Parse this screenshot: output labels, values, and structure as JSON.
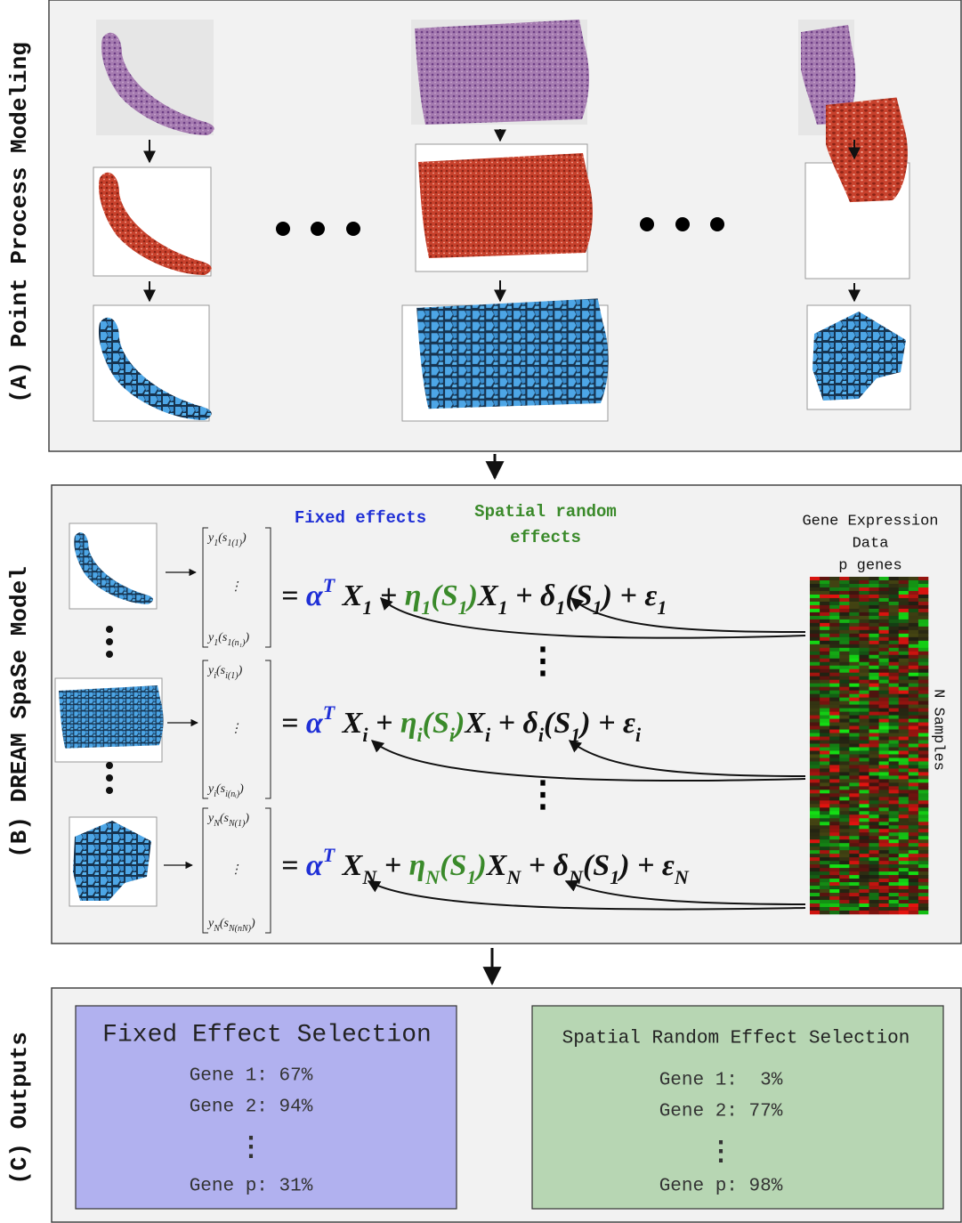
{
  "panel_a": {
    "label": "(A) Point Process Modeling"
  },
  "panel_b": {
    "label": "(B) DREAM SpaSe Model",
    "fixed_effects": "Fixed effects",
    "spatial_random_effects": [
      "Spatial random",
      "effects"
    ],
    "gene_expression": [
      "Gene Expression",
      "Data",
      "p genes"
    ],
    "n_samples": "N Samples",
    "vdots": "⋮",
    "fixed_color": "#1f2fd6",
    "spatial_color": "#3a8a2a",
    "equations": [
      {
        "vector": [
          [
            {
              "text": "y",
              "sub": "1"
            },
            {
              "text": "(s",
              "sub": "1(1)"
            },
            {
              "text": ")"
            }
          ],
          [
            {
              "text": "⋮"
            }
          ],
          [
            {
              "text": "y",
              "sub": "1"
            },
            {
              "text": "(s",
              "sub": "1(n₁)"
            },
            {
              "text": ")"
            }
          ]
        ],
        "terms": [
          {
            "text": "= "
          },
          {
            "text": "α",
            "sup": "T",
            "color": "fixed"
          },
          {
            "text": " X",
            "sub": "1"
          },
          {
            "text": " + "
          },
          {
            "text": "η",
            "sub": "1",
            "color": "spatial"
          },
          {
            "text": "(S",
            "sub": "1",
            "color": "spatial"
          },
          {
            "text": ")",
            "color": "spatial"
          },
          {
            "text": "X",
            "sub": "1"
          },
          {
            "text": " + δ",
            "sub": "1"
          },
          {
            "text": "(S",
            "sub": "1"
          },
          {
            "text": ") + ε",
            "sub": "1"
          }
        ]
      },
      {
        "vector": [
          [
            {
              "text": "y",
              "sub": "i"
            },
            {
              "text": "(s",
              "sub": "i(1)"
            },
            {
              "text": ")"
            }
          ],
          [
            {
              "text": "⋮"
            }
          ],
          [
            {
              "text": "y",
              "sub": "i"
            },
            {
              "text": "(s",
              "sub": "i(nᵢ)"
            },
            {
              "text": ")"
            }
          ]
        ],
        "terms": [
          {
            "text": "= "
          },
          {
            "text": "α",
            "sup": "T",
            "color": "fixed"
          },
          {
            "text": " X",
            "sub": "i"
          },
          {
            "text": " + "
          },
          {
            "text": "η",
            "sub": "i",
            "color": "spatial"
          },
          {
            "text": "(S",
            "sub": "i",
            "color": "spatial"
          },
          {
            "text": ")",
            "color": "spatial"
          },
          {
            "text": "X",
            "sub": "i"
          },
          {
            "text": " + δ",
            "sub": "i"
          },
          {
            "text": "(S",
            "sub": "1"
          },
          {
            "text": ") + ε",
            "sub": "i"
          }
        ]
      },
      {
        "vector": [
          [
            {
              "text": "y",
              "sub": "N"
            },
            {
              "text": "(s",
              "sub": "N(1)"
            },
            {
              "text": ")"
            }
          ],
          [
            {
              "text": "⋮"
            }
          ],
          [
            {
              "text": "y",
              "sub": "N"
            },
            {
              "text": "(s",
              "sub": "N(nN)"
            },
            {
              "text": ")"
            }
          ]
        ],
        "terms": [
          {
            "text": "= "
          },
          {
            "text": "α",
            "sup": "T",
            "color": "fixed"
          },
          {
            "text": " X",
            "sub": "N"
          },
          {
            "text": " + "
          },
          {
            "text": "η",
            "sub": "N",
            "color": "spatial"
          },
          {
            "text": "(S",
            "sub": "1",
            "color": "spatial"
          },
          {
            "text": ")",
            "color": "spatial"
          },
          {
            "text": "X",
            "sub": "N"
          },
          {
            "text": " + δ",
            "sub": "N"
          },
          {
            "text": "(S",
            "sub": "1"
          },
          {
            "text": ") + ε",
            "sub": "N"
          }
        ]
      }
    ]
  },
  "panel_c": {
    "label": "(C) Outputs",
    "fixed": {
      "title": "Fixed Effect Selection",
      "lines": [
        "Gene 1: 67%",
        "Gene 2: 94%",
        "⋮",
        "Gene p: 31%"
      ]
    },
    "spatial": {
      "title": "Spatial Random Effect Selection",
      "lines": [
        "Gene 1:  3%",
        "Gene 2: 77%",
        "⋮",
        "Gene p: 98%"
      ]
    }
  }
}
